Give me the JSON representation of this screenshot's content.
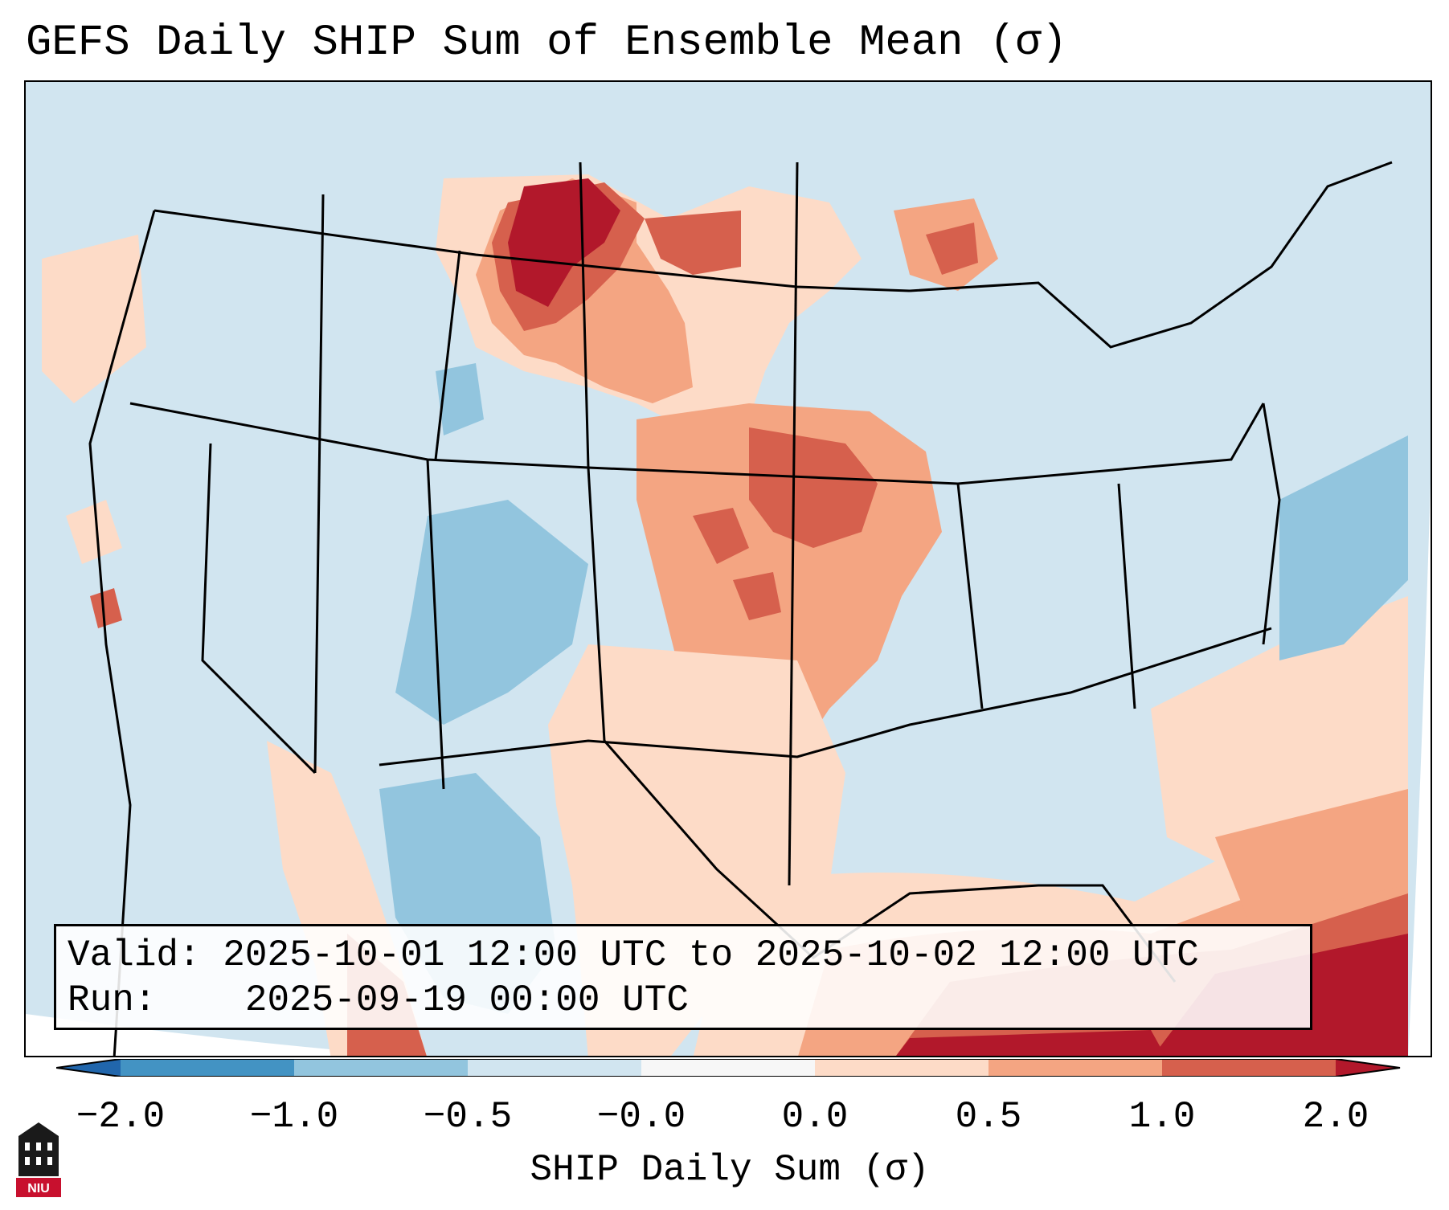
{
  "title": "GEFS Daily SHIP Sum of Ensemble Mean (σ)",
  "info": {
    "valid_label": "Valid:",
    "valid_value": "2025-10-01 12:00 UTC to 2025-10-02 12:00 UTC",
    "run_label": "Run:",
    "run_value": "2025-09-19 00:00 UTC"
  },
  "colorbar": {
    "label": "SHIP Daily Sum (σ)",
    "ticks": [
      "−2.0",
      "−1.0",
      "−0.5",
      "−0.0",
      "0.0",
      "0.5",
      "1.0",
      "2.0"
    ],
    "colors": {
      "below": "#2166ac",
      "neg_2_to_1": "#4393c3",
      "neg_1_to_05": "#92c5de",
      "neg_05_to_0": "#d1e5f0",
      "zero": "#f7f7f7",
      "pos_0_to_05": "#fddbc7",
      "pos_05_to_1": "#f4a582",
      "pos_1_to_2": "#d6604d",
      "above": "#b2182b"
    }
  },
  "logo": {
    "text": "NIU",
    "icon": "university-building-icon"
  }
}
